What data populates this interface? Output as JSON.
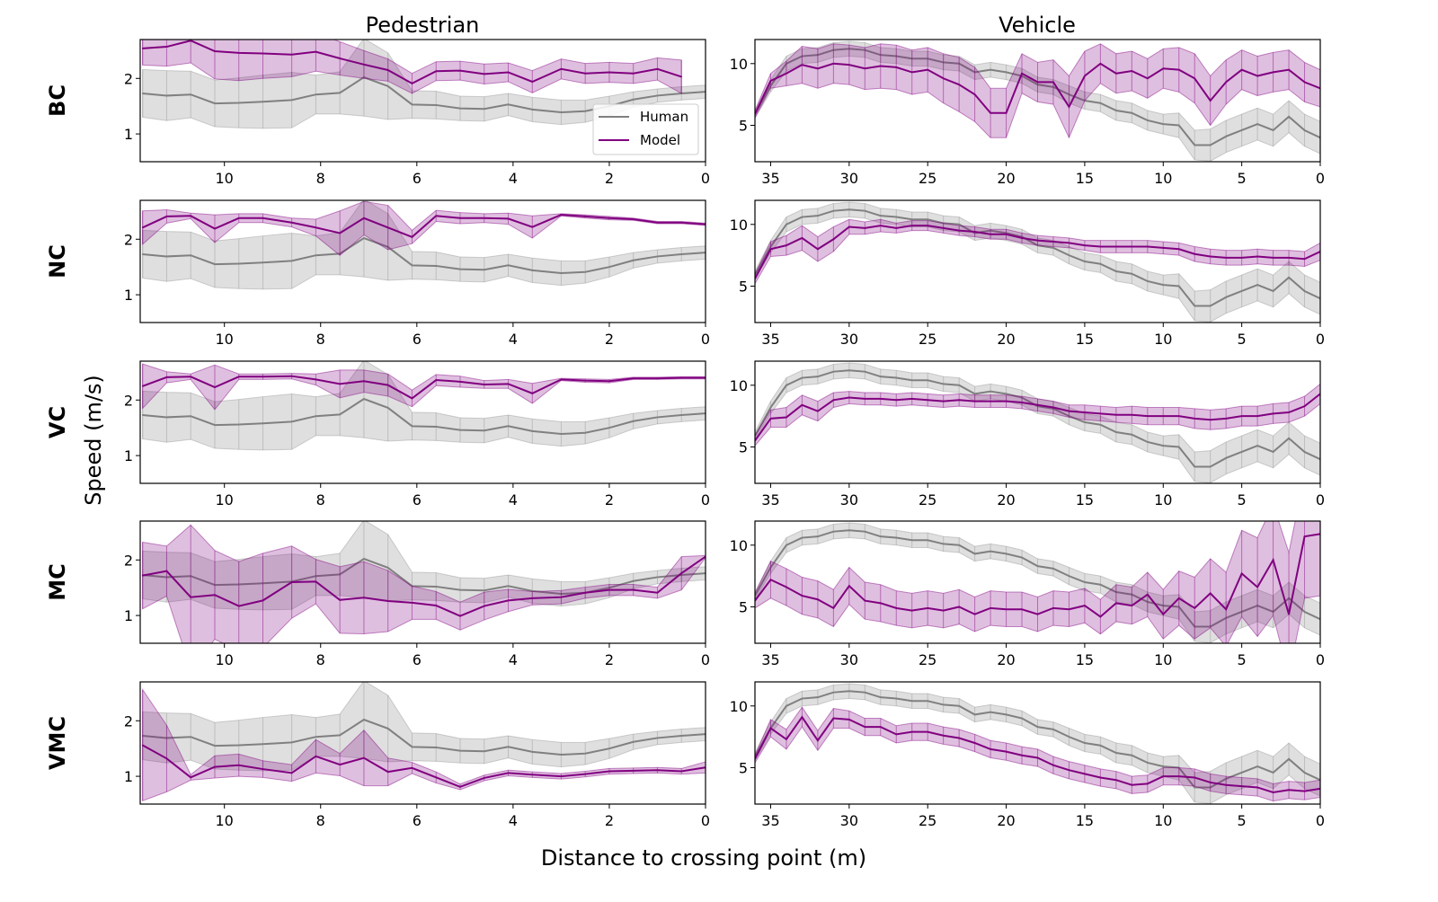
{
  "chart_data": {
    "type": "line",
    "grid": false,
    "xlabel": "Distance to crossing point (m)",
    "ylabel": "Speed (m/s)",
    "colors": {
      "Human": "#808080",
      "Model": "#800080"
    },
    "legend": {
      "entries": [
        "Human",
        "Model"
      ],
      "placement": "lower-right",
      "panel": "BC / Pedestrian"
    },
    "columns": [
      {
        "key": "pedestrian",
        "title": "Pedestrian",
        "x": [
          11.7,
          11.2,
          10.7,
          10.2,
          9.7,
          9.2,
          8.6,
          8.1,
          7.6,
          7.1,
          6.6,
          6.1,
          5.6,
          5.1,
          4.6,
          4.1,
          3.6,
          3.0,
          2.5,
          2.0,
          1.5,
          1.0,
          0.5,
          0.0
        ],
        "xlim": [
          11.75,
          0
        ],
        "ylim": [
          0.5,
          2.7
        ],
        "xticks": [
          10,
          8,
          6,
          4,
          2,
          0
        ],
        "yticks": [
          1,
          2
        ],
        "human": {
          "values": [
            1.73,
            1.69,
            1.71,
            1.55,
            1.56,
            1.58,
            1.61,
            1.71,
            1.74,
            2.02,
            1.86,
            1.53,
            1.52,
            1.46,
            1.45,
            1.53,
            1.44,
            1.39,
            1.41,
            1.5,
            1.62,
            1.69,
            1.73,
            1.76
          ],
          "spread": [
            0.43,
            0.45,
            0.42,
            0.42,
            0.45,
            0.48,
            0.5,
            0.35,
            0.38,
            0.7,
            0.6,
            0.25,
            0.25,
            0.22,
            0.22,
            0.2,
            0.22,
            0.22,
            0.2,
            0.18,
            0.14,
            0.12,
            0.12,
            0.12
          ]
        }
      },
      {
        "key": "vehicle",
        "title": "Vehicle",
        "x": [
          36,
          35,
          34,
          33,
          32,
          31,
          30,
          29,
          28,
          27,
          26,
          25,
          24,
          23,
          22,
          21,
          20,
          19,
          18,
          17,
          16,
          15,
          14,
          13,
          12,
          11,
          10,
          9,
          8,
          7,
          6,
          5,
          4,
          3,
          2,
          1,
          0
        ],
        "xlim": [
          36,
          0
        ],
        "ylim": [
          2.05,
          11.95
        ],
        "xticks": [
          35,
          30,
          25,
          20,
          15,
          10,
          5,
          0
        ],
        "yticks": [
          5,
          10
        ],
        "human": {
          "values": [
            5.9,
            8.2,
            10.0,
            10.6,
            10.7,
            11.1,
            11.2,
            11.1,
            10.7,
            10.6,
            10.4,
            10.4,
            10.1,
            10.0,
            9.3,
            9.5,
            9.3,
            9.0,
            8.3,
            8.1,
            7.5,
            7.0,
            6.8,
            6.2,
            6.0,
            5.4,
            5.1,
            5.0,
            3.4,
            3.4,
            4.1,
            4.6,
            5.1,
            4.6,
            5.7,
            4.6,
            4.0
          ],
          "spread": [
            0.3,
            0.5,
            0.6,
            0.6,
            0.6,
            0.6,
            0.6,
            0.6,
            0.6,
            0.6,
            0.6,
            0.6,
            0.6,
            0.6,
            0.6,
            0.6,
            0.6,
            0.6,
            0.6,
            0.6,
            0.7,
            0.7,
            0.7,
            0.8,
            0.8,
            0.8,
            0.8,
            1.0,
            1.2,
            1.3,
            1.3,
            1.3,
            1.3,
            1.3,
            1.3,
            1.3,
            1.3
          ]
        }
      }
    ],
    "rows": [
      {
        "label": "BC",
        "pedestrian": {
          "values": [
            2.54,
            2.57,
            2.68,
            2.49,
            2.46,
            2.45,
            2.43,
            2.48,
            2.36,
            2.25,
            2.15,
            1.91,
            2.13,
            2.14,
            2.08,
            2.11,
            1.94,
            2.17,
            2.09,
            2.11,
            2.09,
            2.17,
            2.03,
            null
          ],
          "spread": [
            0.3,
            0.35,
            0.4,
            0.5,
            0.5,
            0.45,
            0.4,
            0.35,
            0.3,
            0.25,
            0.2,
            0.18,
            0.17,
            0.17,
            0.18,
            0.17,
            0.2,
            0.18,
            0.18,
            0.18,
            0.18,
            0.2,
            0.3,
            null
          ]
        },
        "vehicle": {
          "values": [
            5.9,
            8.6,
            9.2,
            9.9,
            9.6,
            10.0,
            9.9,
            9.6,
            9.8,
            9.7,
            9.3,
            9.5,
            8.8,
            8.3,
            7.5,
            6.0,
            6.0,
            9.2,
            8.5,
            8.5,
            6.5,
            9.0,
            10.0,
            9.2,
            9.4,
            8.8,
            9.6,
            9.5,
            8.8,
            7.0,
            8.5,
            9.5,
            9.0,
            9.3,
            9.5,
            8.5,
            8.0
          ],
          "spread": [
            0.3,
            0.6,
            1.0,
            1.5,
            1.6,
            1.6,
            1.6,
            1.7,
            1.8,
            1.8,
            1.8,
            1.8,
            2.0,
            2.2,
            2.2,
            2.0,
            2.0,
            1.6,
            1.6,
            1.8,
            2.5,
            2.0,
            1.6,
            1.6,
            1.6,
            1.6,
            1.6,
            1.8,
            2.0,
            2.0,
            1.8,
            1.6,
            1.6,
            1.6,
            1.6,
            1.6,
            1.5
          ]
        }
      },
      {
        "label": "NC",
        "pedestrian": {
          "values": [
            2.21,
            2.41,
            2.42,
            2.19,
            2.38,
            2.38,
            2.3,
            2.21,
            2.11,
            2.38,
            2.21,
            2.04,
            2.42,
            2.38,
            2.38,
            2.37,
            2.22,
            2.44,
            2.41,
            2.38,
            2.36,
            2.3,
            2.3,
            2.27
          ],
          "spread": [
            0.3,
            0.12,
            0.05,
            0.25,
            0.08,
            0.08,
            0.08,
            0.15,
            0.4,
            0.3,
            0.4,
            0.12,
            0.1,
            0.1,
            0.08,
            0.1,
            0.2,
            0.02,
            0.03,
            0.03,
            0.02,
            0.02,
            0.02,
            0.02
          ]
        },
        "vehicle": {
          "values": [
            5.6,
            8.0,
            8.3,
            8.9,
            8.0,
            8.8,
            9.8,
            9.7,
            9.9,
            9.7,
            9.9,
            9.9,
            9.7,
            9.5,
            9.4,
            9.2,
            9.2,
            8.9,
            8.7,
            8.6,
            8.5,
            8.3,
            8.2,
            8.2,
            8.2,
            8.2,
            8.1,
            8.0,
            7.6,
            7.4,
            7.3,
            7.3,
            7.4,
            7.3,
            7.3,
            7.2,
            7.8
          ],
          "spread": [
            0.4,
            0.6,
            0.8,
            1.0,
            1.0,
            1.0,
            0.6,
            0.5,
            0.5,
            0.4,
            0.4,
            0.4,
            0.4,
            0.4,
            0.4,
            0.4,
            0.4,
            0.4,
            0.4,
            0.4,
            0.4,
            0.4,
            0.5,
            0.5,
            0.5,
            0.5,
            0.5,
            0.5,
            0.6,
            0.6,
            0.6,
            0.6,
            0.6,
            0.6,
            0.6,
            0.6,
            0.7
          ]
        }
      },
      {
        "label": "VC",
        "pedestrian": {
          "values": [
            2.25,
            2.41,
            2.42,
            2.23,
            2.42,
            2.42,
            2.43,
            2.37,
            2.29,
            2.34,
            2.27,
            2.03,
            2.36,
            2.33,
            2.28,
            2.29,
            2.12,
            2.37,
            2.35,
            2.34,
            2.39,
            2.39,
            2.4,
            2.4
          ],
          "spread": [
            0.4,
            0.1,
            0.05,
            0.4,
            0.05,
            0.05,
            0.05,
            0.1,
            0.25,
            0.2,
            0.2,
            0.15,
            0.1,
            0.1,
            0.07,
            0.08,
            0.18,
            0.02,
            0.03,
            0.03,
            0.02,
            0.02,
            0.02,
            0.02
          ]
        },
        "vehicle": {
          "values": [
            5.5,
            7.3,
            7.4,
            8.4,
            7.9,
            8.8,
            9.0,
            8.9,
            8.9,
            8.8,
            8.9,
            8.8,
            8.7,
            8.8,
            8.7,
            8.7,
            8.7,
            8.6,
            8.4,
            8.2,
            7.9,
            7.8,
            7.7,
            7.6,
            7.6,
            7.5,
            7.5,
            7.5,
            7.3,
            7.2,
            7.3,
            7.5,
            7.5,
            7.7,
            7.8,
            8.3,
            9.3
          ],
          "spread": [
            0.4,
            0.7,
            0.8,
            0.8,
            0.8,
            0.6,
            0.5,
            0.5,
            0.5,
            0.5,
            0.5,
            0.5,
            0.5,
            0.5,
            0.5,
            0.5,
            0.5,
            0.5,
            0.5,
            0.5,
            0.5,
            0.6,
            0.6,
            0.6,
            0.7,
            0.7,
            0.7,
            0.7,
            0.8,
            0.8,
            0.8,
            0.8,
            0.8,
            0.8,
            0.8,
            0.8,
            0.8
          ]
        }
      },
      {
        "label": "MC",
        "pedestrian": {
          "values": [
            1.72,
            1.8,
            1.33,
            1.37,
            1.17,
            1.27,
            1.6,
            1.61,
            1.28,
            1.32,
            1.26,
            1.23,
            1.18,
            0.99,
            1.17,
            1.27,
            1.31,
            1.33,
            1.41,
            1.46,
            1.46,
            1.41,
            1.76,
            2.06
          ],
          "spread": [
            0.6,
            0.45,
            1.3,
            0.8,
            0.8,
            0.85,
            0.65,
            0.4,
            0.6,
            0.65,
            0.55,
            0.3,
            0.25,
            0.25,
            0.25,
            0.2,
            0.12,
            0.12,
            0.1,
            0.1,
            0.1,
            0.1,
            0.3,
            0.02
          ]
        },
        "vehicle": {
          "values": [
            5.5,
            7.2,
            6.6,
            5.9,
            5.6,
            4.9,
            6.7,
            5.5,
            5.3,
            4.9,
            4.7,
            4.9,
            4.7,
            5.0,
            4.4,
            4.9,
            4.8,
            4.8,
            4.4,
            4.9,
            4.8,
            5.1,
            4.2,
            5.3,
            5.1,
            6.0,
            4.4,
            5.7,
            4.9,
            6.1,
            4.8,
            7.7,
            6.6,
            8.8,
            4.4,
            10.7,
            10.9
          ],
          "spread": [
            0.6,
            1.5,
            1.5,
            1.5,
            1.5,
            1.5,
            1.5,
            1.5,
            1.5,
            1.4,
            1.4,
            1.4,
            1.4,
            1.4,
            1.4,
            1.4,
            1.4,
            1.4,
            1.4,
            1.4,
            1.4,
            1.4,
            1.4,
            1.5,
            1.5,
            1.8,
            2.0,
            2.2,
            2.5,
            2.8,
            3.0,
            3.5,
            4.0,
            4.5,
            5.0,
            5.0,
            5.0
          ]
        }
      },
      {
        "label": "VMC",
        "pedestrian": {
          "values": [
            1.56,
            1.32,
            0.98,
            1.17,
            1.2,
            1.13,
            1.06,
            1.36,
            1.21,
            1.33,
            1.08,
            1.15,
            0.98,
            0.81,
            0.97,
            1.06,
            1.03,
            1.0,
            1.04,
            1.09,
            1.1,
            1.11,
            1.09,
            1.16
          ],
          "spread": [
            1.0,
            0.6,
            0.05,
            0.2,
            0.2,
            0.15,
            0.15,
            0.3,
            0.2,
            0.5,
            0.25,
            0.1,
            0.1,
            0.05,
            0.05,
            0.05,
            0.05,
            0.05,
            0.05,
            0.05,
            0.05,
            0.05,
            0.05,
            0.1
          ]
        },
        "vehicle": {
          "values": [
            5.7,
            8.2,
            7.3,
            9.1,
            7.2,
            9.0,
            8.9,
            8.3,
            8.3,
            7.7,
            7.9,
            7.9,
            7.6,
            7.4,
            7.0,
            6.5,
            6.3,
            6.0,
            5.8,
            5.2,
            4.8,
            4.5,
            4.2,
            4.0,
            3.6,
            3.7,
            4.3,
            4.3,
            4.2,
            3.8,
            3.6,
            3.5,
            3.4,
            3.0,
            3.2,
            3.1,
            3.3
          ],
          "spread": [
            0.3,
            0.7,
            0.8,
            0.8,
            0.8,
            0.8,
            0.7,
            0.7,
            0.7,
            0.7,
            0.7,
            0.7,
            0.7,
            0.7,
            0.7,
            0.7,
            0.7,
            0.7,
            0.7,
            0.7,
            0.7,
            0.7,
            0.7,
            0.7,
            0.7,
            0.7,
            0.7,
            0.7,
            0.7,
            0.7,
            0.7,
            0.7,
            0.7,
            0.7,
            0.7,
            0.7,
            0.7
          ]
        }
      }
    ]
  }
}
